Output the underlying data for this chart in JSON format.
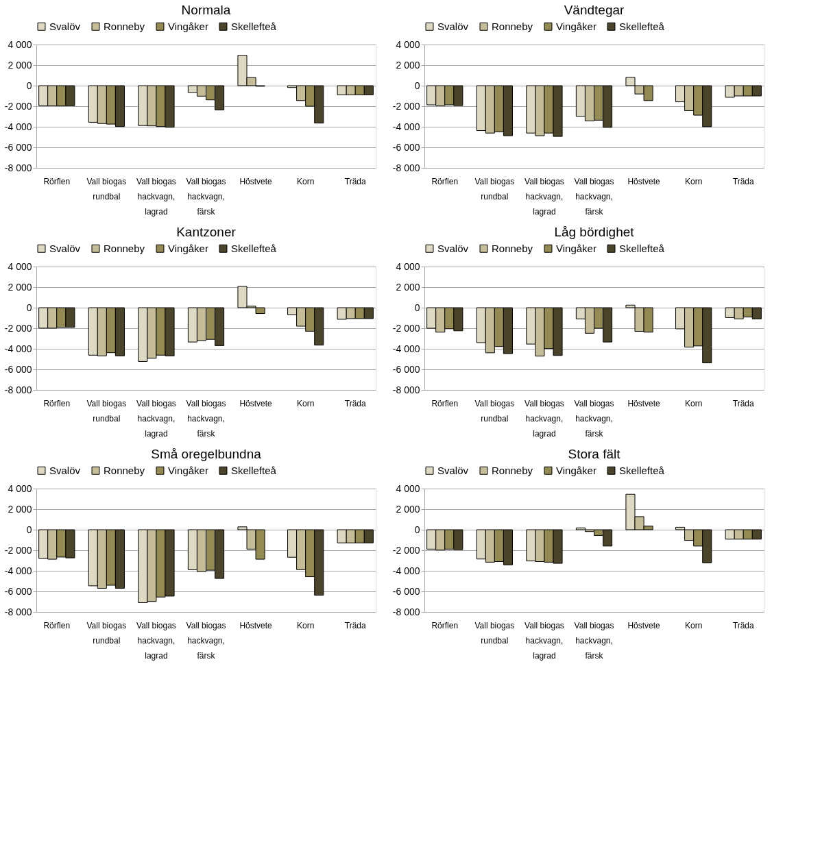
{
  "chart_data": [
    {
      "type": "bar",
      "title": "Normala",
      "categories": [
        "Rörflen",
        "Vall biogas\nrundbal",
        "Vall biogas\nhackvagn,\nlagrad",
        "Vall biogas\nhackvagn,\nfärsk",
        "Höstvete",
        "Korn",
        "Träda"
      ],
      "series": [
        {
          "name": "Svalöv",
          "color": "#ddd9c3",
          "values": [
            -1950,
            -3560,
            -3880,
            -670,
            2950,
            -180,
            -890
          ]
        },
        {
          "name": "Ronneby",
          "color": "#c4bd97",
          "values": [
            -1950,
            -3680,
            -3910,
            -1020,
            790,
            -1450,
            -890
          ]
        },
        {
          "name": "Vingåker",
          "color": "#948a54",
          "values": [
            -1950,
            -3740,
            -3980,
            -1380,
            -60,
            -2000,
            -890
          ]
        },
        {
          "name": "Skellefteå",
          "color": "#4a452a",
          "values": [
            -1950,
            -3980,
            -4050,
            -2360,
            null,
            -3640,
            -890
          ]
        }
      ],
      "ylim": [
        -8000,
        4000
      ],
      "yticks": [
        {
          "value": 4000,
          "label": "4 000"
        },
        {
          "value": 2000,
          "label": "2 000"
        },
        0,
        {
          "value": -2000,
          "label": "-2 000"
        },
        {
          "value": -4000,
          "label": "-4 000"
        },
        {
          "value": -6000,
          "label": "-6 000"
        },
        {
          "value": -8000,
          "label": "-8 000"
        }
      ],
      "grid": "y",
      "legend": "top"
    },
    {
      "type": "bar",
      "title": "Vändtegar",
      "categories": [
        "Rörflen",
        "Vall biogas\nrundbal",
        "Vall biogas\nhackvagn,\nlagrad",
        "Vall biogas\nhackvagn,\nfärsk",
        "Höstvete",
        "Korn",
        "Träda"
      ],
      "series": [
        {
          "name": "Svalöv",
          "color": "#ddd9c3",
          "values": [
            -1870,
            -4370,
            -4610,
            -2990,
            810,
            -1570,
            -1130
          ]
        },
        {
          "name": "Ronneby",
          "color": "#c4bd97",
          "values": [
            -1940,
            -4610,
            -4870,
            -3430,
            -810,
            -2430,
            -1000
          ]
        },
        {
          "name": "Vingåker",
          "color": "#948a54",
          "values": [
            -1870,
            -4490,
            -4610,
            -3360,
            -1450,
            -2870,
            -1000
          ]
        },
        {
          "name": "Skellefteå",
          "color": "#4a452a",
          "values": [
            -1940,
            -4870,
            -4940,
            -4060,
            null,
            -4000,
            -1000
          ]
        }
      ],
      "ylim": [
        -8000,
        4000
      ],
      "yticks": [
        {
          "value": 4000,
          "label": "4 000"
        },
        {
          "value": 2000,
          "label": "2 000"
        },
        0,
        {
          "value": -2000,
          "label": "-2 000"
        },
        {
          "value": -4000,
          "label": "-4 000"
        },
        {
          "value": -6000,
          "label": "-6 000"
        },
        {
          "value": -8000,
          "label": "-8 000"
        }
      ],
      "grid": "y",
      "legend": "top"
    },
    {
      "type": "bar",
      "title": "Kantzoner",
      "categories": [
        "Rörflen",
        "Vall biogas\nrundbal",
        "Vall biogas\nhackvagn,\nlagrad",
        "Vall biogas\nhackvagn,\nfärsk",
        "Höstvete",
        "Korn",
        "Träda"
      ],
      "series": [
        {
          "name": "Svalöv",
          "color": "#ddd9c3",
          "values": [
            -1990,
            -4620,
            -5230,
            -3340,
            2070,
            -690,
            -1130
          ]
        },
        {
          "name": "Ronneby",
          "color": "#c4bd97",
          "values": [
            -1990,
            -4690,
            -4920,
            -3200,
            150,
            -1800,
            -1060
          ]
        },
        {
          "name": "Vingåker",
          "color": "#948a54",
          "values": [
            -1910,
            -4380,
            -4620,
            -3080,
            -570,
            -2290,
            -1060
          ]
        },
        {
          "name": "Skellefteå",
          "color": "#4a452a",
          "values": [
            -1910,
            -4690,
            -4690,
            -3690,
            null,
            -3640,
            -1060
          ]
        }
      ],
      "ylim": [
        -8000,
        4000
      ],
      "yticks": [
        {
          "value": 4000,
          "label": "4 000"
        },
        {
          "value": 2000,
          "label": "2 000"
        },
        0,
        {
          "value": -2000,
          "label": "-2 000"
        },
        {
          "value": -4000,
          "label": "-4 000"
        },
        {
          "value": -6000,
          "label": "-6 000"
        },
        {
          "value": -8000,
          "label": "-8 000"
        }
      ],
      "grid": "y",
      "legend": "top"
    },
    {
      "type": "bar",
      "title": "Låg bördighet",
      "categories": [
        "Rörflen",
        "Vall biogas\nrundbal",
        "Vall biogas\nhackvagn,\nlagrad",
        "Vall biogas\nhackvagn,\nfärsk",
        "Höstvete",
        "Korn",
        "Träda"
      ],
      "series": [
        {
          "name": "Svalöv",
          "color": "#ddd9c3",
          "values": [
            -2000,
            -3400,
            -3540,
            -1090,
            250,
            -2060,
            -960
          ]
        },
        {
          "name": "Ronneby",
          "color": "#c4bd97",
          "values": [
            -2380,
            -4390,
            -4710,
            -2490,
            -2300,
            -3830,
            -1090
          ]
        },
        {
          "name": "Vingåker",
          "color": "#948a54",
          "values": [
            -2050,
            -3780,
            -3980,
            -2000,
            -2380,
            -3720,
            -910
          ]
        },
        {
          "name": "Skellefteå",
          "color": "#4a452a",
          "values": [
            -2250,
            -4470,
            -4650,
            -3340,
            null,
            -5370,
            -1090
          ]
        }
      ],
      "ylim": [
        -8000,
        4000
      ],
      "yticks": [
        {
          "value": 4000,
          "label": "4 000"
        },
        {
          "value": 2000,
          "label": "2 000"
        },
        0,
        {
          "value": -2000,
          "label": "-2 000"
        },
        {
          "value": -4000,
          "label": "-4 000"
        },
        {
          "value": -6000,
          "label": "-6 000"
        },
        {
          "value": -8000,
          "label": "-8 000"
        }
      ],
      "grid": "y",
      "legend": "top"
    },
    {
      "type": "bar",
      "title": "Små oregelbundna",
      "categories": [
        "Rörflen",
        "Vall biogas\nrundbal",
        "Vall biogas\nhackvagn,\nlagrad",
        "Vall biogas\nhackvagn,\nfärsk",
        "Höstvete",
        "Korn",
        "Träda"
      ],
      "series": [
        {
          "name": "Svalöv",
          "color": "#ddd9c3",
          "values": [
            -2800,
            -5460,
            -7100,
            -3890,
            280,
            -2680,
            -1280
          ]
        },
        {
          "name": "Ronneby",
          "color": "#c4bd97",
          "values": [
            -2870,
            -5700,
            -6980,
            -4080,
            -1890,
            -3890,
            -1280
          ]
        },
        {
          "name": "Vingåker",
          "color": "#948a54",
          "values": [
            -2660,
            -5400,
            -6550,
            -3940,
            -2870,
            -4570,
            -1280
          ]
        },
        {
          "name": "Skellefteå",
          "color": "#4a452a",
          "values": [
            -2740,
            -5700,
            -6460,
            -4740,
            null,
            -6380,
            -1280
          ]
        }
      ],
      "ylim": [
        -8000,
        4000
      ],
      "yticks": [
        {
          "value": 4000,
          "label": "4 000"
        },
        {
          "value": 2000,
          "label": "2 000"
        },
        0,
        {
          "value": -2000,
          "label": "-2 000"
        },
        {
          "value": -4000,
          "label": "-4 000"
        },
        {
          "value": -6000,
          "label": "-6 000"
        },
        {
          "value": -8000,
          "label": "-8 000"
        }
      ],
      "grid": "y",
      "legend": "top"
    },
    {
      "type": "bar",
      "title": "Stora fält",
      "categories": [
        "Rörflen",
        "Vall biogas\nrundbal",
        "Vall biogas\nhackvagn,\nlagrad",
        "Vall biogas\nhackvagn,\nfärsk",
        "Höstvete",
        "Korn",
        "Träda"
      ],
      "series": [
        {
          "name": "Svalöv",
          "color": "#ddd9c3",
          "values": [
            -1890,
            -2850,
            -3040,
            180,
            3450,
            240,
            -920
          ]
        },
        {
          "name": "Ronneby",
          "color": "#c4bd97",
          "values": [
            -1980,
            -3160,
            -3100,
            -180,
            1270,
            -1040,
            -920
          ]
        },
        {
          "name": "Vingåker",
          "color": "#948a54",
          "values": [
            -1890,
            -3100,
            -3160,
            -560,
            350,
            -1590,
            -920
          ]
        },
        {
          "name": "Skellefteå",
          "color": "#4a452a",
          "values": [
            -1940,
            -3420,
            -3270,
            -1590,
            null,
            -3220,
            -920
          ]
        }
      ],
      "ylim": [
        -8000,
        4000
      ],
      "yticks": [
        {
          "value": 4000,
          "label": "4 000"
        },
        {
          "value": 2000,
          "label": "2 000"
        },
        0,
        {
          "value": -2000,
          "label": "-2 000"
        },
        {
          "value": -4000,
          "label": "-4 000"
        },
        {
          "value": -6000,
          "label": "-6 000"
        },
        {
          "value": -8000,
          "label": "-8 000"
        }
      ],
      "grid": "y",
      "legend": "top"
    }
  ]
}
